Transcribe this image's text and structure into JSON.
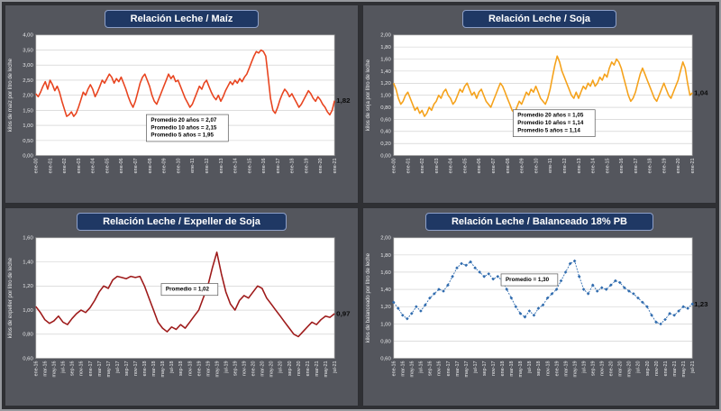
{
  "chart_data": [
    {
      "type": "line",
      "title": "Relación Leche / Maíz",
      "ylabel": "kilos de maíz por litro de leche",
      "ylim": [
        0,
        4
      ],
      "ystep": 0.5,
      "line_color": "#E8441F",
      "marker": false,
      "end_label": "1,82",
      "annotation": {
        "lines": [
          "Promedio 20 años = 2,07",
          "Promedio 10 años = 2,15",
          "Promedio  5 años = 1,95"
        ],
        "x": 0.37,
        "y": 0.66
      },
      "label_every": 6,
      "x_labels": [
        "ene-00",
        "ene-01",
        "ene-02",
        "ene-03",
        "ene-04",
        "ene-05",
        "ene-06",
        "ene-07",
        "ene-08",
        "ene-09",
        "ene-10",
        "ene-11",
        "ene-12",
        "ene-13",
        "ene-14",
        "ene-15",
        "ene-16",
        "ene-17",
        "ene-18",
        "ene-19",
        "ene-20",
        "ene-21"
      ],
      "values": [
        2.05,
        1.95,
        2.1,
        2.3,
        2.45,
        2.2,
        2.5,
        2.35,
        2.15,
        2.3,
        2.1,
        1.8,
        1.55,
        1.3,
        1.35,
        1.45,
        1.3,
        1.4,
        1.6,
        1.85,
        2.1,
        2.0,
        2.2,
        2.35,
        2.2,
        1.95,
        2.1,
        2.3,
        2.5,
        2.4,
        2.55,
        2.7,
        2.6,
        2.4,
        2.55,
        2.45,
        2.6,
        2.4,
        2.2,
        1.95,
        1.75,
        1.6,
        1.8,
        2.1,
        2.4,
        2.6,
        2.7,
        2.5,
        2.3,
        2.0,
        1.8,
        1.7,
        1.9,
        2.1,
        2.3,
        2.5,
        2.7,
        2.55,
        2.65,
        2.45,
        2.5,
        2.3,
        2.1,
        1.9,
        1.75,
        1.6,
        1.7,
        1.9,
        2.1,
        2.3,
        2.2,
        2.4,
        2.5,
        2.3,
        2.1,
        1.95,
        1.85,
        2.0,
        1.8,
        1.95,
        2.15,
        2.3,
        2.45,
        2.35,
        2.5,
        2.4,
        2.55,
        2.45,
        2.6,
        2.7,
        2.9,
        3.1,
        3.3,
        3.45,
        3.4,
        3.5,
        3.45,
        3.3,
        2.6,
        1.9,
        1.5,
        1.4,
        1.6,
        1.85,
        2.05,
        2.2,
        2.1,
        1.95,
        2.05,
        1.9,
        1.75,
        1.6,
        1.7,
        1.85,
        2.0,
        2.15,
        2.05,
        1.9,
        1.8,
        1.95,
        1.85,
        1.7,
        1.6,
        1.45,
        1.35,
        1.5,
        1.82
      ]
    },
    {
      "type": "line",
      "title": "Relación Leche / Soja",
      "ylabel": "kilos de soja por litro de leche",
      "ylim": [
        0,
        2
      ],
      "ystep": 0.2,
      "line_color": "#F5A21B",
      "marker": false,
      "end_label": "1,04",
      "annotation": {
        "lines": [
          "Promedio 20 años = 1,05",
          "Promedio 10 años = 1,14",
          "Promedio  5 años = 1,14"
        ],
        "x": 0.4,
        "y": 0.62
      },
      "label_every": 6,
      "x_labels": [
        "ene-00",
        "ene-01",
        "ene-02",
        "ene-03",
        "ene-04",
        "ene-05",
        "ene-06",
        "ene-07",
        "ene-08",
        "ene-09",
        "ene-10",
        "ene-11",
        "ene-12",
        "ene-13",
        "ene-14",
        "ene-15",
        "ene-16",
        "ene-17",
        "ene-18",
        "ene-19",
        "ene-20",
        "ene-21"
      ],
      "values": [
        1.2,
        1.1,
        0.95,
        0.85,
        0.9,
        1.0,
        1.05,
        0.95,
        0.85,
        0.75,
        0.8,
        0.7,
        0.75,
        0.65,
        0.7,
        0.8,
        0.75,
        0.85,
        0.9,
        1.0,
        0.95,
        1.05,
        1.1,
        1.0,
        0.95,
        0.85,
        0.9,
        1.0,
        1.1,
        1.05,
        1.15,
        1.2,
        1.1,
        1.0,
        1.05,
        0.95,
        1.05,
        1.1,
        1.0,
        0.9,
        0.85,
        0.8,
        0.9,
        1.0,
        1.1,
        1.2,
        1.15,
        1.05,
        0.95,
        0.85,
        0.75,
        0.7,
        0.8,
        0.9,
        0.85,
        0.95,
        1.05,
        1.0,
        1.1,
        1.05,
        1.15,
        1.05,
        0.95,
        0.9,
        0.85,
        0.95,
        1.1,
        1.3,
        1.5,
        1.65,
        1.55,
        1.4,
        1.3,
        1.2,
        1.1,
        1.0,
        0.95,
        1.05,
        0.95,
        1.05,
        1.15,
        1.1,
        1.2,
        1.15,
        1.25,
        1.15,
        1.2,
        1.3,
        1.25,
        1.35,
        1.3,
        1.45,
        1.55,
        1.5,
        1.6,
        1.55,
        1.45,
        1.3,
        1.15,
        1.0,
        0.9,
        0.95,
        1.05,
        1.2,
        1.35,
        1.45,
        1.35,
        1.25,
        1.15,
        1.05,
        0.95,
        0.9,
        1.0,
        1.1,
        1.2,
        1.1,
        1.0,
        0.95,
        1.05,
        1.15,
        1.25,
        1.4,
        1.55,
        1.45,
        1.2,
        1.0,
        1.04
      ]
    },
    {
      "type": "line",
      "title": "Relación Leche / Expeller de Soja",
      "ylabel": "kilos de expeller por litro de leche",
      "ylim": [
        0.6,
        1.6
      ],
      "ystep": 0.2,
      "line_color": "#9E1A1A",
      "marker": false,
      "end_label": "0,97",
      "annotation": {
        "lines": [
          "Promedio = 1,02"
        ],
        "x": 0.42,
        "y": 0.38
      },
      "label_every": 2,
      "x_labels": [
        "ene-16",
        "mar-16",
        "may-16",
        "jul-16",
        "sep-16",
        "nov-16",
        "ene-17",
        "mar-17",
        "may-17",
        "jul-17",
        "sep-17",
        "nov-17",
        "ene-18",
        "mar-18",
        "may-18",
        "jul-18",
        "sep-18",
        "nov-18",
        "ene-19",
        "mar-19",
        "may-19",
        "jul-19",
        "sep-19",
        "nov-19",
        "ene-20",
        "mar-20",
        "may-20",
        "jul-20",
        "sep-20",
        "nov-20",
        "ene-21",
        "mar-21",
        "may-21",
        "jul-21"
      ],
      "values": [
        1.03,
        0.98,
        0.92,
        0.89,
        0.91,
        0.95,
        0.9,
        0.88,
        0.93,
        0.97,
        1.0,
        0.98,
        1.02,
        1.08,
        1.15,
        1.2,
        1.18,
        1.25,
        1.28,
        1.27,
        1.26,
        1.28,
        1.27,
        1.28,
        1.2,
        1.1,
        1.0,
        0.9,
        0.85,
        0.82,
        0.86,
        0.84,
        0.88,
        0.85,
        0.9,
        0.95,
        1.0,
        1.1,
        1.2,
        1.35,
        1.48,
        1.3,
        1.15,
        1.05,
        1.0,
        1.08,
        1.12,
        1.1,
        1.15,
        1.2,
        1.18,
        1.1,
        1.05,
        1.0,
        0.95,
        0.9,
        0.85,
        0.8,
        0.78,
        0.82,
        0.86,
        0.9,
        0.88,
        0.92,
        0.95,
        0.94,
        0.97
      ]
    },
    {
      "type": "line",
      "title": "Relación Leche / Balanceado 18% PB",
      "ylabel": "kilos de balanceado por litro de leche",
      "ylim": [
        0.6,
        2.0
      ],
      "ystep": 0.2,
      "line_color": "#2F6BAE",
      "marker": true,
      "end_label": "1,23",
      "annotation": {
        "lines": [
          "Promedio = 1,30"
        ],
        "x": 0.36,
        "y": 0.3
      },
      "label_every": 2,
      "x_labels": [
        "ene-16",
        "mar-16",
        "may-16",
        "jul-16",
        "sep-16",
        "nov-16",
        "ene-17",
        "mar-17",
        "may-17",
        "jul-17",
        "sep-17",
        "nov-17",
        "ene-18",
        "mar-18",
        "may-18",
        "jul-18",
        "sep-18",
        "nov-18",
        "ene-19",
        "mar-19",
        "may-19",
        "jul-19",
        "sep-19",
        "nov-19",
        "ene-20",
        "mar-20",
        "may-20",
        "jul-20",
        "sep-20",
        "nov-20",
        "ene-21",
        "mar-21",
        "may-21",
        "jul-21"
      ],
      "values": [
        1.25,
        1.18,
        1.1,
        1.06,
        1.12,
        1.2,
        1.15,
        1.22,
        1.3,
        1.35,
        1.4,
        1.38,
        1.45,
        1.55,
        1.65,
        1.7,
        1.68,
        1.72,
        1.65,
        1.6,
        1.55,
        1.58,
        1.52,
        1.55,
        1.5,
        1.4,
        1.3,
        1.2,
        1.12,
        1.08,
        1.15,
        1.1,
        1.18,
        1.22,
        1.3,
        1.35,
        1.4,
        1.5,
        1.6,
        1.7,
        1.73,
        1.55,
        1.4,
        1.35,
        1.45,
        1.38,
        1.42,
        1.4,
        1.45,
        1.5,
        1.48,
        1.42,
        1.38,
        1.35,
        1.3,
        1.25,
        1.2,
        1.1,
        1.02,
        1.0,
        1.05,
        1.12,
        1.1,
        1.15,
        1.2,
        1.18,
        1.23
      ]
    }
  ]
}
